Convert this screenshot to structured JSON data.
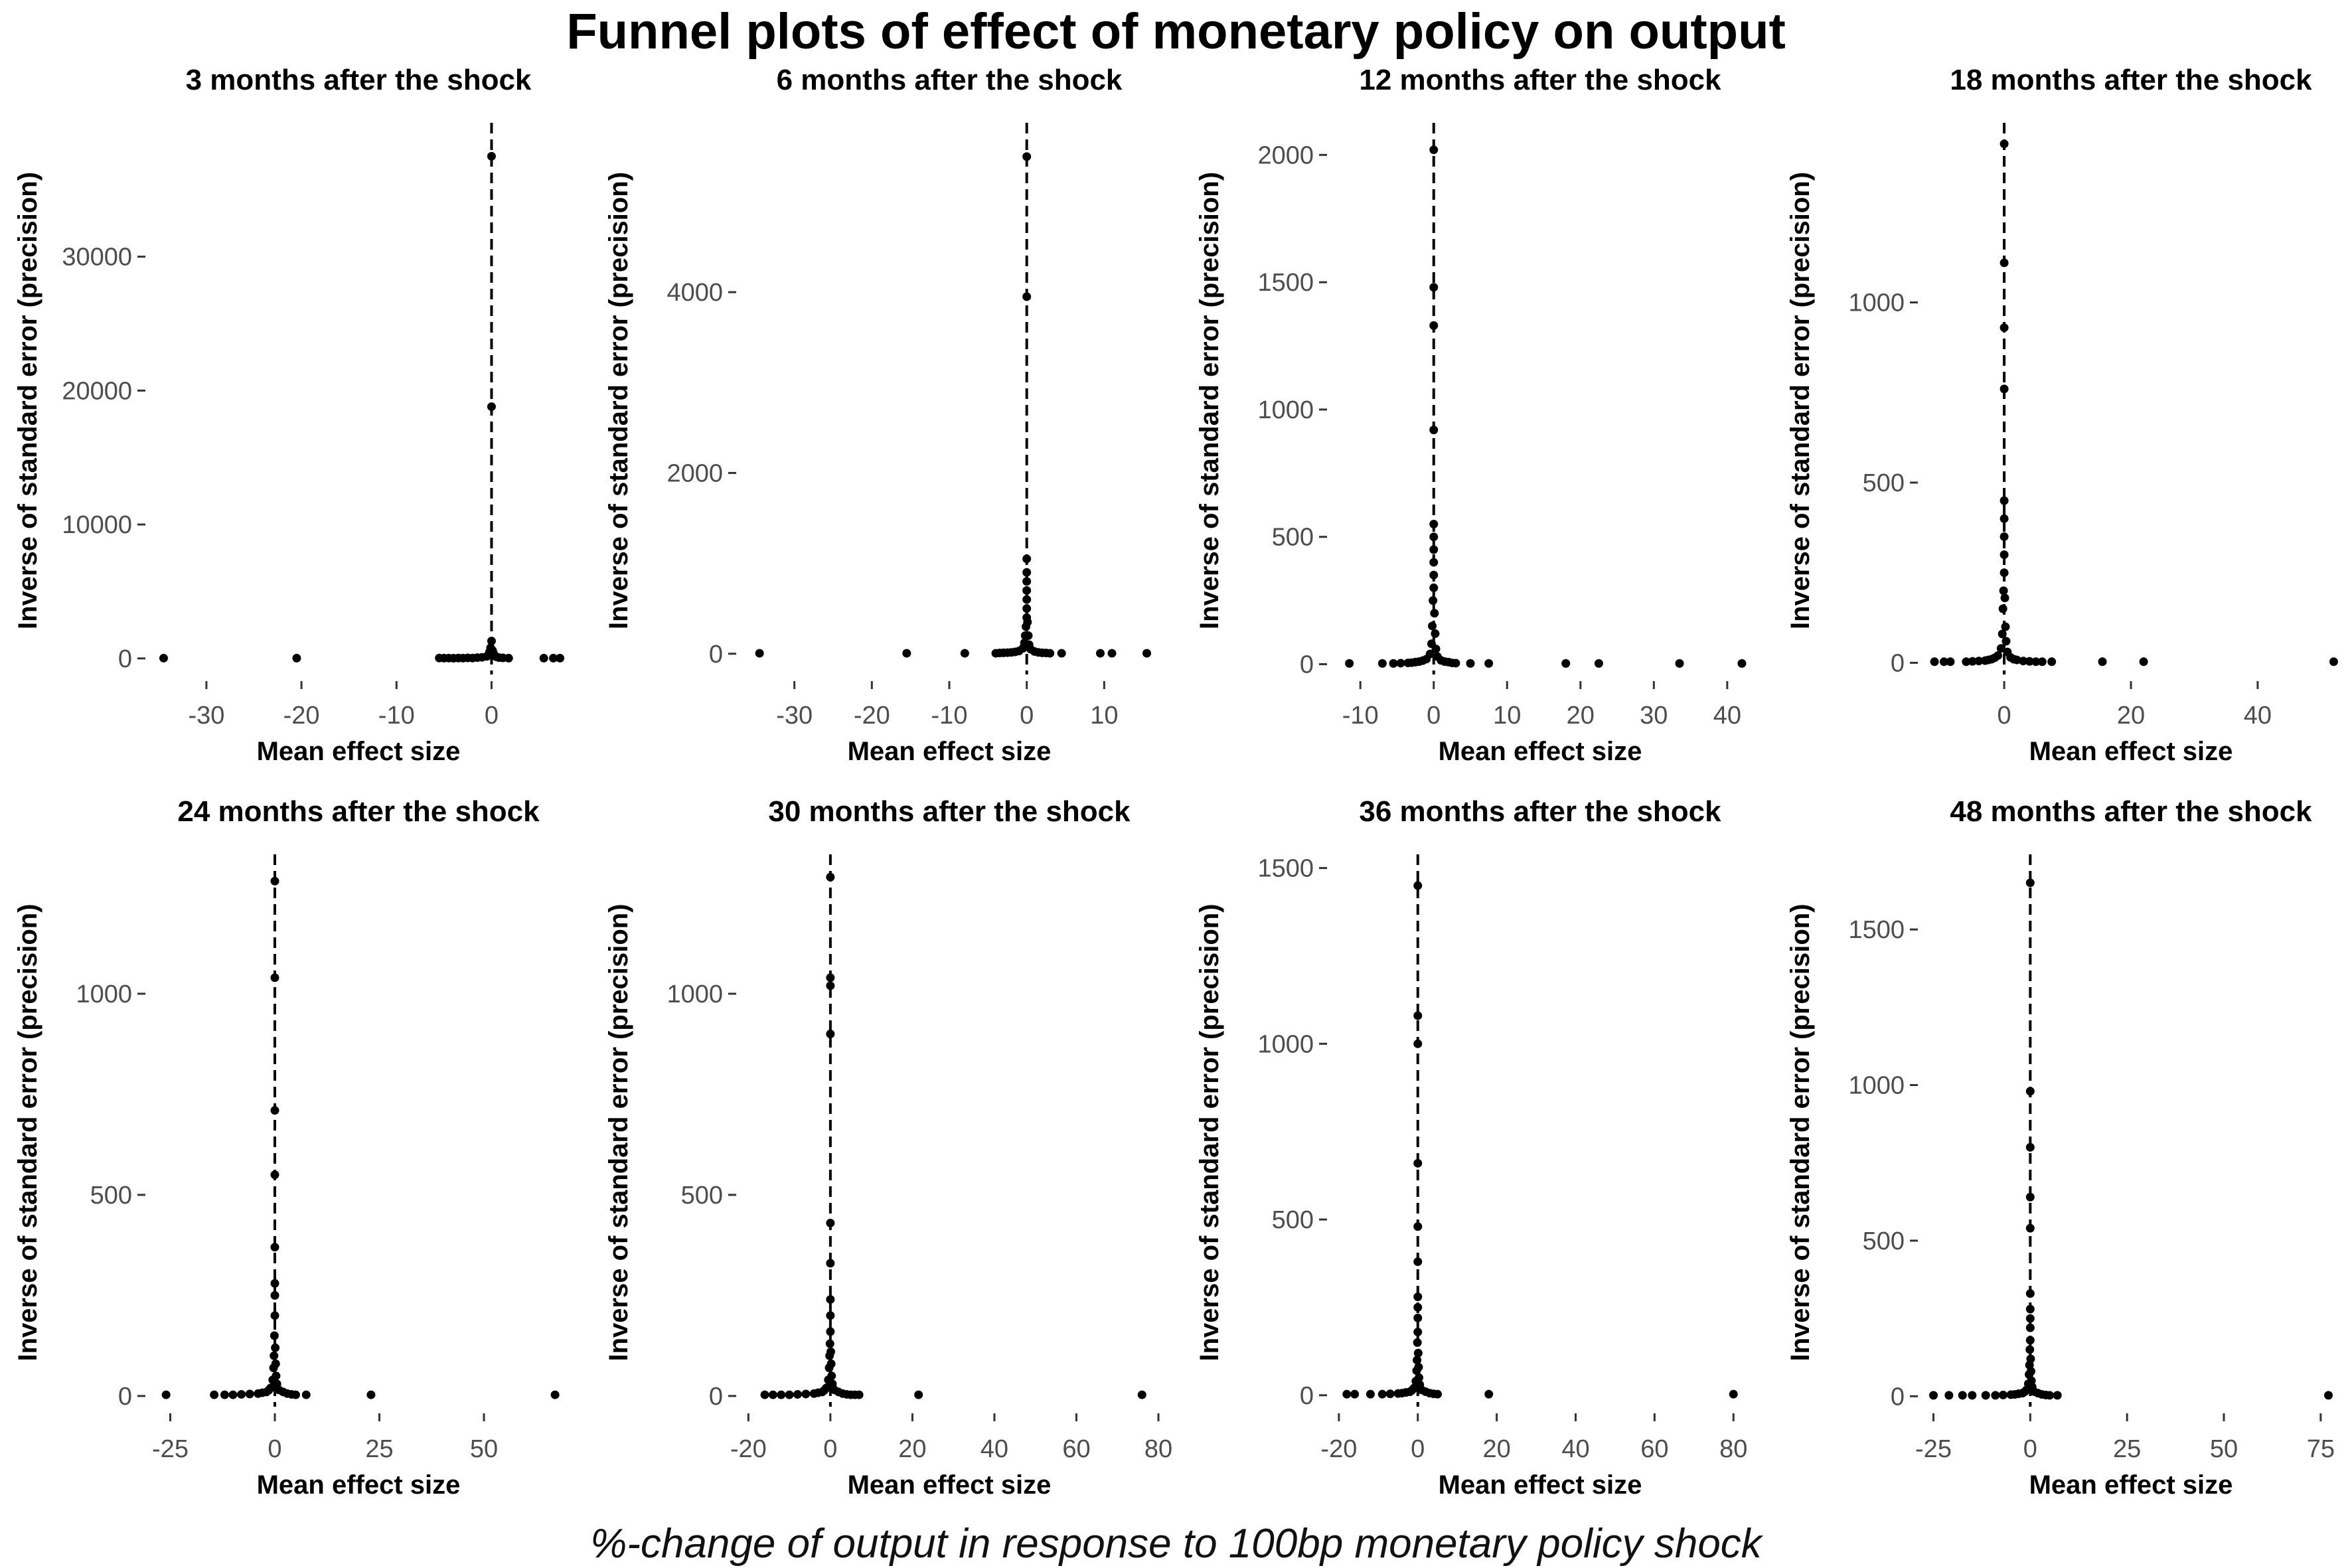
{
  "title": "Funnel plots of effect of monetary policy on output",
  "caption": "%-change of output in response to 100bp monetary policy shock",
  "colors": {
    "points": "#000000",
    "reference_line": "#000000",
    "tick_labels": "#4d4d4d"
  },
  "chart_data": [
    {
      "type": "scatter",
      "title": "3 months after the shock",
      "xlabel": "Mean effect size",
      "ylabel": "Inverse of standard error (precision)",
      "xlim": [
        -36,
        8
      ],
      "ylim": [
        -1000,
        39500
      ],
      "xticks": [
        -30,
        -20,
        -10,
        0
      ],
      "yticks": [
        0,
        10000,
        20000,
        30000
      ],
      "reference_x": 0,
      "grid": false,
      "points": [
        [
          -34.5,
          20
        ],
        [
          -20.5,
          20
        ],
        [
          -5.5,
          30
        ],
        [
          -5,
          20
        ],
        [
          -4.5,
          25
        ],
        [
          -4,
          15
        ],
        [
          -3.5,
          30
        ],
        [
          -3,
          20
        ],
        [
          -2.5,
          40
        ],
        [
          -2,
          30
        ],
        [
          -1.5,
          60
        ],
        [
          -1,
          80
        ],
        [
          -0.5,
          150
        ],
        [
          -0.3,
          300
        ],
        [
          -0.2,
          500
        ],
        [
          -0.1,
          800
        ],
        [
          0,
          1300
        ],
        [
          0.1,
          600
        ],
        [
          0.2,
          400
        ],
        [
          0.3,
          200
        ],
        [
          0.5,
          120
        ],
        [
          0.8,
          60
        ],
        [
          1.2,
          40
        ],
        [
          1.8,
          20
        ],
        [
          5.5,
          20
        ],
        [
          6.5,
          20
        ],
        [
          7.2,
          20
        ],
        [
          0,
          18800
        ],
        [
          0,
          37500
        ]
      ]
    },
    {
      "type": "scatter",
      "title": "6 months after the shock",
      "xlabel": "Mean effect size",
      "ylabel": "Inverse of standard error (precision)",
      "xlim": [
        -37,
        17
      ],
      "ylim": [
        -200,
        5800
      ],
      "xticks": [
        -30,
        -20,
        -10,
        0,
        10
      ],
      "yticks": [
        0,
        2000,
        4000
      ],
      "reference_x": 0,
      "grid": false,
      "points": [
        [
          -34.5,
          5
        ],
        [
          -15.5,
          5
        ],
        [
          -8,
          5
        ],
        [
          -4,
          5
        ],
        [
          -3.5,
          8
        ],
        [
          -3,
          10
        ],
        [
          -2.5,
          12
        ],
        [
          -2,
          15
        ],
        [
          -1.5,
          20
        ],
        [
          -1,
          30
        ],
        [
          -0.5,
          60
        ],
        [
          -0.3,
          120
        ],
        [
          -0.2,
          200
        ],
        [
          -0.1,
          300
        ],
        [
          0,
          400
        ],
        [
          0,
          500
        ],
        [
          0,
          600
        ],
        [
          0,
          700
        ],
        [
          0,
          800
        ],
        [
          0,
          900
        ],
        [
          0,
          1050
        ],
        [
          0.1,
          350
        ],
        [
          0.2,
          200
        ],
        [
          0.3,
          100
        ],
        [
          0.5,
          50
        ],
        [
          1,
          25
        ],
        [
          1.5,
          15
        ],
        [
          2,
          10
        ],
        [
          2.5,
          8
        ],
        [
          3,
          5
        ],
        [
          4.5,
          5
        ],
        [
          9.5,
          5
        ],
        [
          11,
          5
        ],
        [
          15.5,
          5
        ],
        [
          0,
          3950
        ],
        [
          0,
          5500
        ]
      ]
    },
    {
      "type": "scatter",
      "title": "12 months after the shock",
      "xlabel": "Mean effect size",
      "ylabel": "Inverse of standard error (precision)",
      "xlim": [
        -14,
        43
      ],
      "ylim": [
        -30,
        2100
      ],
      "xticks": [
        -10,
        0,
        10,
        20,
        30,
        40
      ],
      "yticks": [
        0,
        500,
        1000,
        1500,
        2000
      ],
      "reference_x": 0,
      "grid": false,
      "points": [
        [
          -11.5,
          3
        ],
        [
          -7,
          3
        ],
        [
          -5.5,
          3
        ],
        [
          -4.5,
          4
        ],
        [
          -3.5,
          5
        ],
        [
          -3,
          6
        ],
        [
          -2.5,
          8
        ],
        [
          -2,
          10
        ],
        [
          -1.5,
          14
        ],
        [
          -1,
          20
        ],
        [
          -0.5,
          40
        ],
        [
          -0.3,
          80
        ],
        [
          -0.2,
          150
        ],
        [
          -0.1,
          250
        ],
        [
          0,
          300
        ],
        [
          0,
          350
        ],
        [
          0,
          400
        ],
        [
          0,
          450
        ],
        [
          0,
          500
        ],
        [
          0,
          550
        ],
        [
          0.1,
          200
        ],
        [
          0.2,
          120
        ],
        [
          0.3,
          60
        ],
        [
          0.5,
          30
        ],
        [
          1,
          15
        ],
        [
          1.5,
          10
        ],
        [
          2,
          8
        ],
        [
          2.5,
          5
        ],
        [
          3,
          4
        ],
        [
          5,
          3
        ],
        [
          7.5,
          3
        ],
        [
          18,
          3
        ],
        [
          22.5,
          3
        ],
        [
          33.5,
          3
        ],
        [
          42,
          3
        ],
        [
          0,
          920
        ],
        [
          0,
          1330
        ],
        [
          0,
          1480
        ],
        [
          0,
          2020
        ]
      ]
    },
    {
      "type": "scatter",
      "title": "18 months after the shock",
      "xlabel": "Mean effect size",
      "ylabel": "Inverse of standard error (precision)",
      "xlim": [
        -13,
        53
      ],
      "ylim": [
        -25,
        1480
      ],
      "xticks": [
        0,
        20,
        40
      ],
      "yticks": [
        0,
        500,
        1000
      ],
      "reference_x": 0,
      "grid": false,
      "points": [
        [
          -11,
          3
        ],
        [
          -9.5,
          3
        ],
        [
          -8.5,
          3
        ],
        [
          -6,
          3
        ],
        [
          -5,
          4
        ],
        [
          -4,
          5
        ],
        [
          -3,
          6
        ],
        [
          -2.5,
          8
        ],
        [
          -2,
          10
        ],
        [
          -1.5,
          14
        ],
        [
          -1,
          20
        ],
        [
          -0.5,
          40
        ],
        [
          -0.3,
          80
        ],
        [
          -0.2,
          150
        ],
        [
          -0.1,
          200
        ],
        [
          0,
          250
        ],
        [
          0,
          300
        ],
        [
          0,
          350
        ],
        [
          0,
          400
        ],
        [
          0,
          450
        ],
        [
          0.1,
          180
        ],
        [
          0.2,
          100
        ],
        [
          0.3,
          60
        ],
        [
          0.5,
          30
        ],
        [
          1,
          15
        ],
        [
          1.5,
          10
        ],
        [
          2,
          8
        ],
        [
          3,
          5
        ],
        [
          4,
          4
        ],
        [
          5,
          3
        ],
        [
          6,
          3
        ],
        [
          7.5,
          3
        ],
        [
          15.5,
          3
        ],
        [
          22,
          3
        ],
        [
          52,
          3
        ],
        [
          0,
          760
        ],
        [
          0,
          930
        ],
        [
          0,
          1110
        ],
        [
          0,
          1440
        ]
      ]
    },
    {
      "type": "scatter",
      "title": "24 months after the shock",
      "xlabel": "Mean effect size",
      "ylabel": "Inverse of standard error (precision)",
      "xlim": [
        -30,
        70
      ],
      "ylim": [
        -20,
        1330
      ],
      "xticks": [
        -25,
        0,
        25,
        50
      ],
      "yticks": [
        0,
        500,
        1000
      ],
      "reference_x": 0,
      "grid": false,
      "points": [
        [
          -26,
          3
        ],
        [
          -14.5,
          3
        ],
        [
          -12,
          3
        ],
        [
          -10,
          3
        ],
        [
          -8,
          4
        ],
        [
          -6,
          5
        ],
        [
          -4,
          6
        ],
        [
          -3,
          8
        ],
        [
          -2,
          10
        ],
        [
          -1.5,
          14
        ],
        [
          -1,
          20
        ],
        [
          -0.5,
          40
        ],
        [
          -0.3,
          70
        ],
        [
          -0.2,
          100
        ],
        [
          -0.1,
          150
        ],
        [
          0,
          200
        ],
        [
          0,
          250
        ],
        [
          0,
          280
        ],
        [
          0.1,
          120
        ],
        [
          0.2,
          80
        ],
        [
          0.3,
          50
        ],
        [
          0.5,
          30
        ],
        [
          1,
          15
        ],
        [
          2,
          10
        ],
        [
          3,
          6
        ],
        [
          4,
          4
        ],
        [
          5,
          3
        ],
        [
          7.5,
          3
        ],
        [
          23,
          3
        ],
        [
          67,
          3
        ],
        [
          0,
          370
        ],
        [
          0,
          550
        ],
        [
          0,
          710
        ],
        [
          0,
          1040
        ],
        [
          0,
          1280
        ]
      ]
    },
    {
      "type": "scatter",
      "title": "30 months after the shock",
      "xlabel": "Mean effect size",
      "ylabel": "Inverse of standard error (precision)",
      "xlim": [
        -22,
        80
      ],
      "ylim": [
        -20,
        1330
      ],
      "xticks": [
        -20,
        0,
        20,
        40,
        60,
        80
      ],
      "yticks": [
        0,
        500,
        1000
      ],
      "reference_x": 0,
      "grid": false,
      "points": [
        [
          -16,
          3
        ],
        [
          -14,
          3
        ],
        [
          -12,
          3
        ],
        [
          -10,
          3
        ],
        [
          -8,
          4
        ],
        [
          -6,
          5
        ],
        [
          -4,
          6
        ],
        [
          -3,
          8
        ],
        [
          -2,
          10
        ],
        [
          -1.5,
          14
        ],
        [
          -1,
          20
        ],
        [
          -0.5,
          40
        ],
        [
          -0.3,
          70
        ],
        [
          -0.2,
          100
        ],
        [
          -0.1,
          130
        ],
        [
          0,
          160
        ],
        [
          0,
          200
        ],
        [
          0,
          240
        ],
        [
          0.1,
          110
        ],
        [
          0.2,
          80
        ],
        [
          0.3,
          50
        ],
        [
          0.5,
          30
        ],
        [
          1,
          15
        ],
        [
          2,
          10
        ],
        [
          3,
          6
        ],
        [
          4,
          4
        ],
        [
          5,
          3
        ],
        [
          6,
          3
        ],
        [
          7,
          3
        ],
        [
          21.5,
          3
        ],
        [
          76,
          3
        ],
        [
          0,
          330
        ],
        [
          0,
          430
        ],
        [
          0,
          900
        ],
        [
          0,
          1020
        ],
        [
          0,
          1040
        ],
        [
          0,
          1290
        ]
      ]
    },
    {
      "type": "scatter",
      "title": "36 months after the shock",
      "xlabel": "Mean effect size",
      "ylabel": "Inverse of standard error (precision)",
      "xlim": [
        -22,
        84
      ],
      "ylim": [
        -25,
        1520
      ],
      "xticks": [
        -20,
        0,
        20,
        40,
        60,
        80
      ],
      "yticks": [
        0,
        500,
        1000,
        1500
      ],
      "reference_x": 0,
      "grid": false,
      "points": [
        [
          -18,
          3
        ],
        [
          -16,
          3
        ],
        [
          -12,
          3
        ],
        [
          -9,
          3
        ],
        [
          -7,
          4
        ],
        [
          -5,
          5
        ],
        [
          -4,
          6
        ],
        [
          -3,
          8
        ],
        [
          -2,
          10
        ],
        [
          -1.5,
          14
        ],
        [
          -1,
          20
        ],
        [
          -0.5,
          40
        ],
        [
          -0.3,
          70
        ],
        [
          -0.2,
          100
        ],
        [
          -0.1,
          150
        ],
        [
          0,
          180
        ],
        [
          0,
          220
        ],
        [
          0,
          250
        ],
        [
          0.1,
          120
        ],
        [
          0.2,
          80
        ],
        [
          0.3,
          50
        ],
        [
          0.5,
          30
        ],
        [
          1,
          15
        ],
        [
          2,
          10
        ],
        [
          3,
          6
        ],
        [
          4,
          4
        ],
        [
          5,
          3
        ],
        [
          18,
          3
        ],
        [
          80,
          3
        ],
        [
          0,
          280
        ],
        [
          0,
          380
        ],
        [
          0,
          480
        ],
        [
          0,
          660
        ],
        [
          0,
          1000
        ],
        [
          0,
          1080
        ],
        [
          0,
          1450
        ]
      ]
    },
    {
      "type": "scatter",
      "title": "48 months after the shock",
      "xlabel": "Mean effect size",
      "ylabel": "Inverse of standard error (precision)",
      "xlim": [
        -28,
        80
      ],
      "ylim": [
        -25,
        1720
      ],
      "xticks": [
        -25,
        0,
        25,
        50,
        75
      ],
      "yticks": [
        0,
        500,
        1000,
        1500
      ],
      "reference_x": 0,
      "grid": false,
      "points": [
        [
          -25,
          3
        ],
        [
          -21,
          3
        ],
        [
          -17.5,
          3
        ],
        [
          -15,
          3
        ],
        [
          -11.5,
          3
        ],
        [
          -9,
          3
        ],
        [
          -7,
          4
        ],
        [
          -5,
          5
        ],
        [
          -4,
          6
        ],
        [
          -3,
          8
        ],
        [
          -2,
          10
        ],
        [
          -1.5,
          14
        ],
        [
          -1,
          20
        ],
        [
          -0.5,
          40
        ],
        [
          -0.3,
          70
        ],
        [
          -0.2,
          100
        ],
        [
          -0.1,
          150
        ],
        [
          0,
          180
        ],
        [
          0,
          220
        ],
        [
          0,
          250
        ],
        [
          0,
          280
        ],
        [
          0.1,
          120
        ],
        [
          0.2,
          80
        ],
        [
          0.3,
          50
        ],
        [
          0.5,
          30
        ],
        [
          1,
          15
        ],
        [
          2,
          10
        ],
        [
          3,
          6
        ],
        [
          4,
          4
        ],
        [
          5,
          3
        ],
        [
          7,
          3
        ],
        [
          77,
          3
        ],
        [
          0,
          330
        ],
        [
          0,
          540
        ],
        [
          0,
          640
        ],
        [
          0,
          800
        ],
        [
          0,
          980
        ],
        [
          0,
          1650
        ]
      ]
    }
  ]
}
